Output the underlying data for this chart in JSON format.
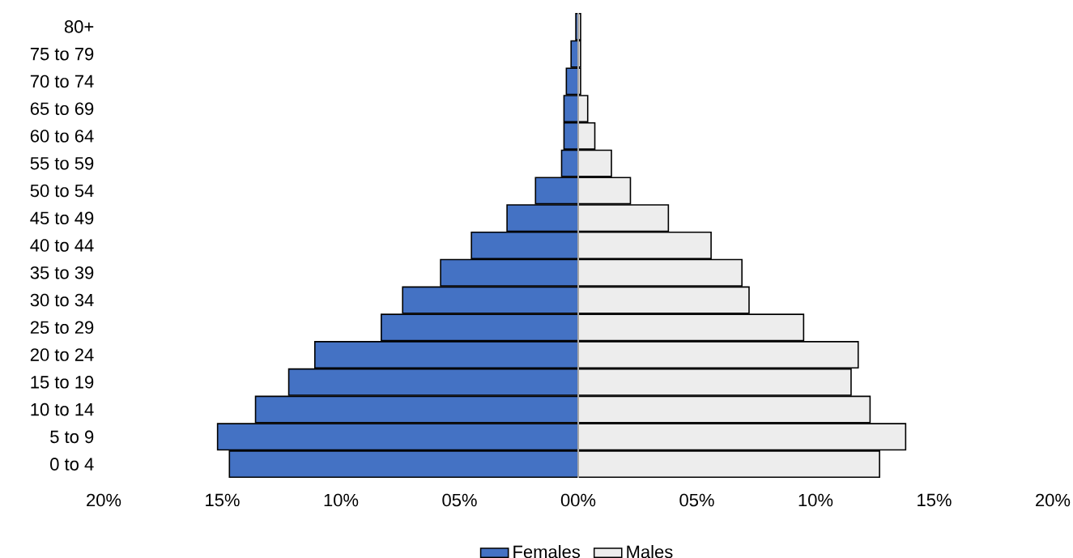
{
  "chart_data": {
    "type": "bar",
    "orientation": "horizontal",
    "categories": [
      "80+",
      "75 to 79",
      "70 to 74",
      "65 to 69",
      "60 to 64",
      "55 to 59",
      "50 to 54",
      "45 to 49",
      "40 to 44",
      "35 to 39",
      "30 to 34",
      "25 to 29",
      "20 to 24",
      "15 to 19",
      "10 to 14",
      "5 to 9",
      "0 to 4"
    ],
    "series": [
      {
        "name": "Females",
        "color": "#4472c4",
        "values": [
          -0.1,
          -0.3,
          -0.5,
          -0.6,
          -0.6,
          -0.7,
          -1.8,
          -3.0,
          -4.5,
          -5.8,
          -7.4,
          -8.3,
          -11.1,
          -12.2,
          -13.6,
          -15.2,
          -14.7
        ]
      },
      {
        "name": "Males",
        "color": "#ededed",
        "values": [
          0.1,
          0.1,
          0.1,
          0.4,
          0.7,
          1.4,
          2.2,
          3.8,
          5.6,
          6.9,
          7.2,
          9.5,
          11.8,
          11.5,
          12.3,
          13.8,
          12.7
        ]
      }
    ],
    "xlim": [
      -20,
      20
    ],
    "xticks": [
      {
        "value": -20,
        "label": "20%"
      },
      {
        "value": -15,
        "label": "15%"
      },
      {
        "value": -10,
        "label": "10%"
      },
      {
        "value": -5,
        "label": "05%"
      },
      {
        "value": 0,
        "label": "00%"
      },
      {
        "value": 5,
        "label": "05%"
      },
      {
        "value": 10,
        "label": "10%"
      },
      {
        "value": 15,
        "label": "15%"
      },
      {
        "value": 20,
        "label": "20%"
      }
    ],
    "legend": "bottom",
    "stacked": true
  }
}
